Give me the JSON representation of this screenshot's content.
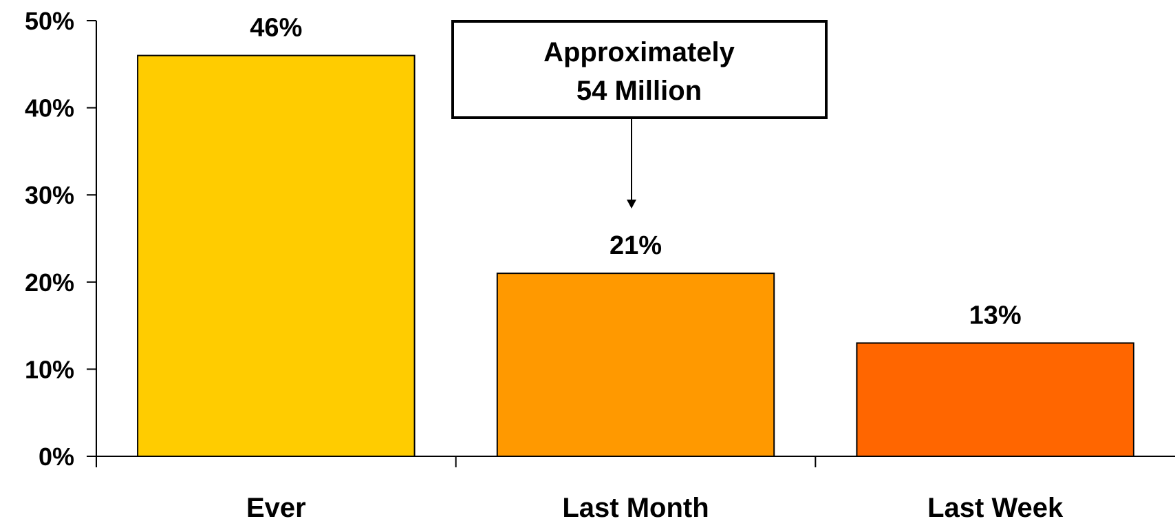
{
  "chart_data": {
    "type": "bar",
    "title": "",
    "xlabel": "",
    "ylabel": "",
    "categories": [
      "Ever",
      "Last Month",
      "Last Week"
    ],
    "values": [
      46,
      21,
      13
    ],
    "value_labels": [
      "46%",
      "21%",
      "13%"
    ],
    "ylim": [
      0,
      50
    ],
    "yticks": [
      0,
      10,
      20,
      30,
      40,
      50
    ],
    "ytick_labels": [
      "0%",
      "10%",
      "20%",
      "30%",
      "40%",
      "50%"
    ],
    "grid": false,
    "legend": "none",
    "bar_colors": [
      "#FFCC00",
      "#FF9900",
      "#FF6600"
    ],
    "annotation": {
      "lines": [
        "Approximately",
        "54 Million"
      ],
      "points_to": "Last Month"
    }
  }
}
